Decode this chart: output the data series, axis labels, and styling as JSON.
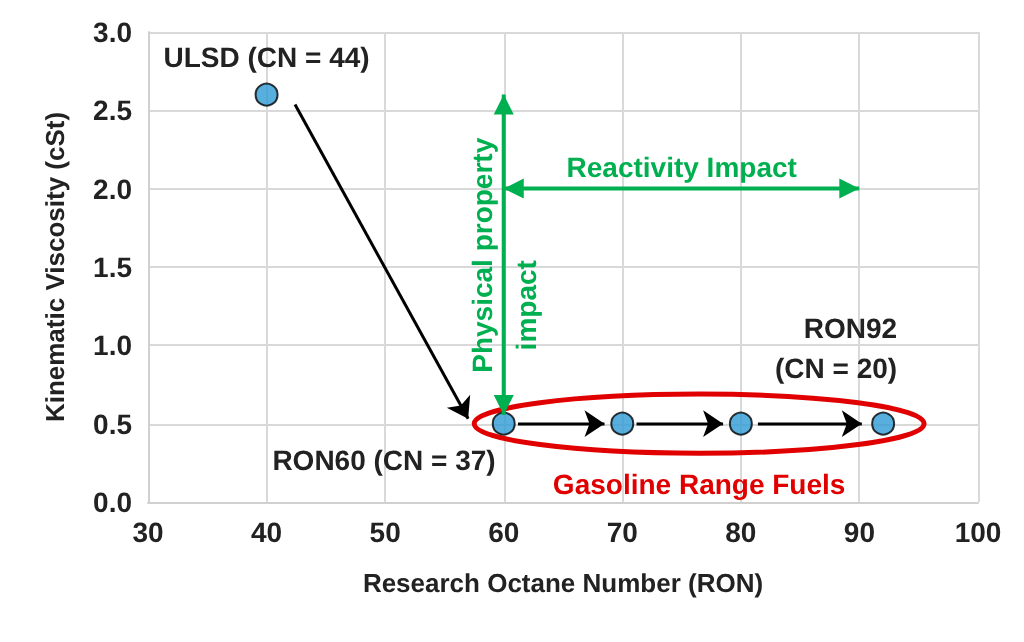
{
  "chart_data": {
    "type": "scatter",
    "xlabel": "Research Octane Number (RON)",
    "ylabel": "Kinematic Viscosity (cSt)",
    "x": [
      40,
      60,
      70,
      80,
      92
    ],
    "series": [
      {
        "color": "#2e9bd6",
        "values": [
          2.6,
          0.5,
          0.5,
          0.5,
          0.5
        ]
      }
    ],
    "xlim": [
      30,
      100
    ],
    "xticks": [
      30,
      40,
      50,
      60,
      70,
      80,
      90,
      100
    ],
    "ylim": [
      0,
      3
    ],
    "yticks": [
      {
        "value": 0,
        "label": "0.0"
      },
      0.5,
      {
        "value": 1,
        "label": "1.0"
      },
      1.5,
      {
        "value": 2,
        "label": "2.0"
      },
      2.5,
      {
        "value": 3,
        "label": "3.0"
      }
    ],
    "grid": true,
    "marker": "circle",
    "annotations": [
      {
        "text": "ULSD (CN = 44)",
        "x": 40,
        "y": 2.6
      },
      {
        "text": "RON60 (CN = 37)",
        "x": 60,
        "y": 0.5
      },
      {
        "text": "RON92\n(CN = 20)",
        "x": 92,
        "y": 0.5
      },
      "Reactivity Impact",
      "Physical property impact",
      "Gasoline Range Fuels"
    ]
  }
}
